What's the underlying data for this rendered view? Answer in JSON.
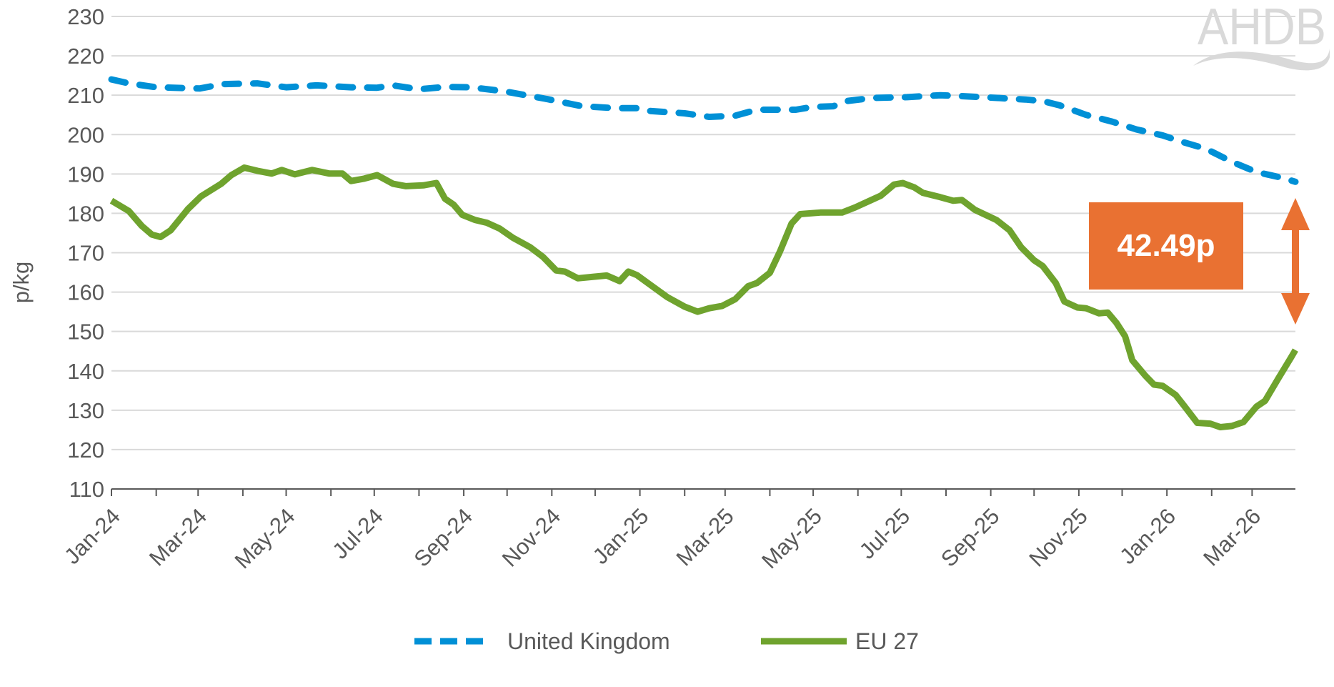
{
  "chart_data": {
    "type": "line",
    "title": "",
    "xlabel": "",
    "ylabel": "p/kg",
    "ylim": [
      110,
      230
    ],
    "yticks": [
      110,
      120,
      130,
      140,
      150,
      160,
      170,
      180,
      190,
      200,
      210,
      220,
      230
    ],
    "xlim": [
      "2024-01-01",
      "2026-03-31"
    ],
    "xtick_labels": [
      "Jan-24",
      "Mar-24",
      "May-24",
      "Jul-24",
      "Sep-24",
      "Nov-24",
      "Jan-25",
      "Mar-25",
      "May-25",
      "Jul-25",
      "Sep-25",
      "Nov-25",
      "Jan-26",
      "Mar-26"
    ],
    "grid": true,
    "legend_position": "bottom",
    "annotation": {
      "label": "42.49p",
      "color": "#E97132"
    },
    "series": [
      {
        "name": "United Kingdom",
        "color": "#0090D6",
        "style": "dashed",
        "points": [
          [
            "2024-01-01",
            214
          ],
          [
            "2024-01-13",
            213
          ],
          [
            "2024-02-01",
            212
          ],
          [
            "2024-03-02",
            211.7
          ],
          [
            "2024-03-18",
            212.8
          ],
          [
            "2024-04-11",
            213
          ],
          [
            "2024-05-01",
            212
          ],
          [
            "2024-05-22",
            212.5
          ],
          [
            "2024-06-15",
            212
          ],
          [
            "2024-07-03",
            211.9
          ],
          [
            "2024-07-14",
            212.5
          ],
          [
            "2024-08-01",
            211.5
          ],
          [
            "2024-08-19",
            212.1
          ],
          [
            "2024-09-06",
            212
          ],
          [
            "2024-09-29",
            211
          ],
          [
            "2024-10-29",
            209
          ],
          [
            "2024-11-22",
            207.2
          ],
          [
            "2024-12-15",
            206.7
          ],
          [
            "2025-01-02",
            206.7
          ],
          [
            "2025-01-08",
            206
          ],
          [
            "2025-02-01",
            205.4
          ],
          [
            "2025-02-18",
            204.5
          ],
          [
            "2025-03-08",
            204.8
          ],
          [
            "2025-03-23",
            206.3
          ],
          [
            "2025-04-19",
            206.3
          ],
          [
            "2025-04-30",
            207
          ],
          [
            "2025-05-15",
            207.2
          ],
          [
            "2025-05-24",
            208.5
          ],
          [
            "2025-06-11",
            209.3
          ],
          [
            "2025-07-05",
            209.5
          ],
          [
            "2025-07-28",
            210
          ],
          [
            "2025-08-27",
            209.5
          ],
          [
            "2025-09-25",
            208.9
          ],
          [
            "2025-10-07",
            208.5
          ],
          [
            "2025-10-19",
            207.4
          ],
          [
            "2025-11-06",
            205
          ],
          [
            "2025-11-24",
            203.3
          ],
          [
            "2025-12-11",
            201.3
          ],
          [
            "2025-12-29",
            199.8
          ],
          [
            "2026-01-13",
            198
          ],
          [
            "2026-01-28",
            196.4
          ],
          [
            "2026-02-15",
            193.1
          ],
          [
            "2026-03-04",
            190.5
          ],
          [
            "2026-03-22",
            189
          ],
          [
            "2026-03-31",
            188
          ]
        ]
      },
      {
        "name": "EU 27",
        "color": "#6FA32E",
        "style": "solid",
        "points": [
          [
            "2024-01-01",
            183.2
          ],
          [
            "2024-01-13",
            180.6
          ],
          [
            "2024-01-22",
            176.8
          ],
          [
            "2024-01-29",
            174.6
          ],
          [
            "2024-02-04",
            174
          ],
          [
            "2024-02-11",
            175.7
          ],
          [
            "2024-02-23",
            181.1
          ],
          [
            "2024-03-03",
            184.3
          ],
          [
            "2024-03-17",
            187.5
          ],
          [
            "2024-03-24",
            189.7
          ],
          [
            "2024-04-02",
            191.6
          ],
          [
            "2024-04-11",
            190.8
          ],
          [
            "2024-04-21",
            190.1
          ],
          [
            "2024-04-28",
            191
          ],
          [
            "2024-05-07",
            189.9
          ],
          [
            "2024-05-19",
            191
          ],
          [
            "2024-05-31",
            190.1
          ],
          [
            "2024-06-09",
            190.1
          ],
          [
            "2024-06-15",
            188.2
          ],
          [
            "2024-06-24",
            188.8
          ],
          [
            "2024-07-03",
            189.7
          ],
          [
            "2024-07-14",
            187.5
          ],
          [
            "2024-07-23",
            186.9
          ],
          [
            "2024-08-04",
            187.1
          ],
          [
            "2024-08-13",
            187.7
          ],
          [
            "2024-08-19",
            183.7
          ],
          [
            "2024-08-25",
            182.2
          ],
          [
            "2024-08-31",
            179.6
          ],
          [
            "2024-09-09",
            178.3
          ],
          [
            "2024-09-17",
            177.6
          ],
          [
            "2024-09-26",
            176.1
          ],
          [
            "2024-10-05",
            173.8
          ],
          [
            "2024-10-17",
            171.4
          ],
          [
            "2024-10-26",
            168.9
          ],
          [
            "2024-11-04",
            165.5
          ],
          [
            "2024-11-10",
            165.2
          ],
          [
            "2024-11-19",
            163.5
          ],
          [
            "2024-11-30",
            163.9
          ],
          [
            "2024-12-09",
            164.2
          ],
          [
            "2024-12-18",
            162.8
          ],
          [
            "2024-12-24",
            165.2
          ],
          [
            "2024-12-30",
            164.3
          ],
          [
            "2025-01-08",
            161.9
          ],
          [
            "2025-01-20",
            158.7
          ],
          [
            "2025-02-01",
            156.3
          ],
          [
            "2025-02-10",
            155
          ],
          [
            "2025-02-18",
            155.9
          ],
          [
            "2025-02-27",
            156.5
          ],
          [
            "2025-03-08",
            158.2
          ],
          [
            "2025-03-17",
            161.5
          ],
          [
            "2025-03-23",
            162.3
          ],
          [
            "2025-04-01",
            164.9
          ],
          [
            "2025-04-08",
            170.3
          ],
          [
            "2025-04-16",
            177.4
          ],
          [
            "2025-04-22",
            179.8
          ],
          [
            "2025-05-06",
            180.2
          ],
          [
            "2025-05-21",
            180.2
          ],
          [
            "2025-05-30",
            181.5
          ],
          [
            "2025-06-08",
            183
          ],
          [
            "2025-06-17",
            184.5
          ],
          [
            "2025-06-26",
            187.3
          ],
          [
            "2025-07-02",
            187.7
          ],
          [
            "2025-07-10",
            186.6
          ],
          [
            "2025-07-16",
            185.2
          ],
          [
            "2025-07-28",
            184.1
          ],
          [
            "2025-08-06",
            183.2
          ],
          [
            "2025-08-12",
            183.4
          ],
          [
            "2025-08-21",
            180.9
          ],
          [
            "2025-09-05",
            178.3
          ],
          [
            "2025-09-14",
            175.7
          ],
          [
            "2025-09-22",
            171.4
          ],
          [
            "2025-10-01",
            168.1
          ],
          [
            "2025-10-07",
            166.6
          ],
          [
            "2025-10-16",
            162.3
          ],
          [
            "2025-10-22",
            157.6
          ],
          [
            "2025-10-31",
            156.1
          ],
          [
            "2025-11-06",
            155.9
          ],
          [
            "2025-11-15",
            154.6
          ],
          [
            "2025-11-21",
            154.8
          ],
          [
            "2025-11-27",
            152.2
          ],
          [
            "2025-12-03",
            148.8
          ],
          [
            "2025-12-08",
            142.7
          ],
          [
            "2025-12-17",
            138.8
          ],
          [
            "2025-12-23",
            136.5
          ],
          [
            "2025-12-29",
            136.2
          ],
          [
            "2026-01-07",
            133.9
          ],
          [
            "2026-01-13",
            131.1
          ],
          [
            "2026-01-22",
            126.8
          ],
          [
            "2026-01-31",
            126.6
          ],
          [
            "2026-02-07",
            125.7
          ],
          [
            "2026-02-15",
            126
          ],
          [
            "2026-02-23",
            127
          ],
          [
            "2026-03-04",
            130.9
          ],
          [
            "2026-03-10",
            132.4
          ],
          [
            "2026-03-19",
            138
          ],
          [
            "2026-03-28",
            143.4
          ],
          [
            "2026-03-31",
            145.3
          ]
        ]
      }
    ]
  },
  "logo": {
    "text": "AHDB",
    "color": "#D9D9D9"
  }
}
